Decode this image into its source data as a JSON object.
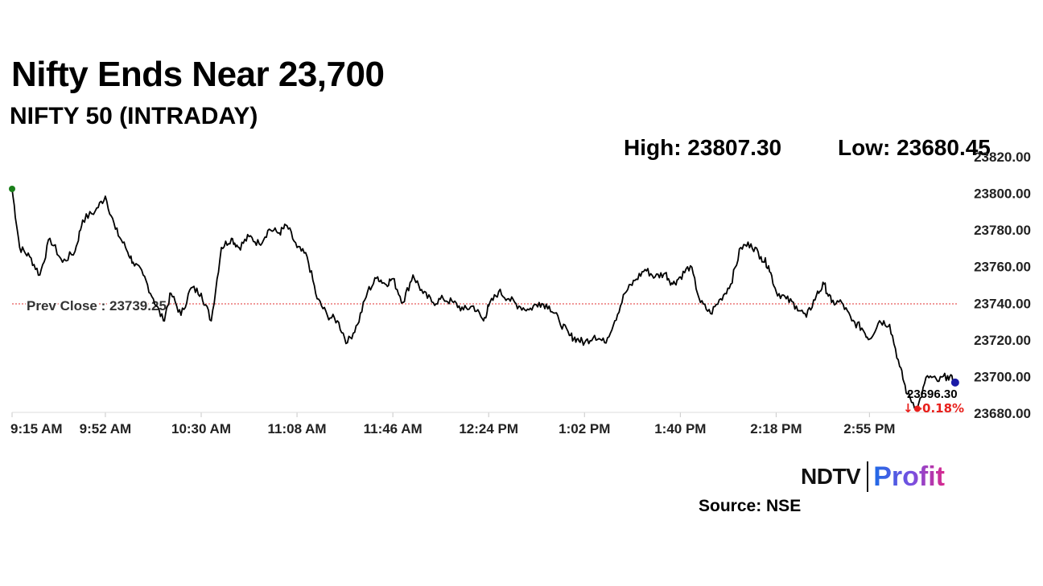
{
  "header": {
    "title": "Nifty Ends Near 23,700",
    "subtitle": "NIFTY 50 (INTRADAY)",
    "high_label": "High: 23807.30",
    "low_label": "Low: 23680.45"
  },
  "footer": {
    "logo_ndtv": "NDTV",
    "logo_profit": "Profit",
    "source": "Source: NSE"
  },
  "colors": {
    "line": "#000000",
    "prev_close": "#e03131",
    "start_marker": "#1a7f1a",
    "low_marker": "#e8201c",
    "end_marker": "#1a1aa6",
    "change_negative": "#e8201c"
  },
  "chart_data": {
    "type": "line",
    "title": "NIFTY 50 (INTRADAY)",
    "xlabel": "",
    "ylabel": "",
    "x_ticks": [
      "9:15 AM",
      "9:52 AM",
      "10:30 AM",
      "11:08 AM",
      "11:46 AM",
      "12:24 PM",
      "1:02 PM",
      "1:40 PM",
      "2:18 PM",
      "2:55 PM"
    ],
    "y_ticks": [
      "23820.00",
      "23800.00",
      "23780.00",
      "23760.00",
      "23740.00",
      "23720.00",
      "23700.00",
      "23680.00"
    ],
    "ylim": [
      23680,
      23820
    ],
    "grid": false,
    "prev_close": 23739.25,
    "prev_close_label": "Prev Close : 23739.25",
    "last_value_label": "23696.30",
    "change_label": "↓ -0.18%",
    "series": [
      {
        "x": [
          "9:15 AM",
          "9:18 AM",
          "9:22 AM",
          "9:26 AM",
          "9:30 AM",
          "9:35 AM",
          "9:40 AM",
          "9:43 AM",
          "9:48 AM",
          "9:52 AM",
          "9:56 AM",
          "10:00 AM",
          "10:03 AM",
          "10:07 AM",
          "10:11 AM",
          "10:15 AM",
          "10:18 AM",
          "10:22 AM",
          "10:26 AM",
          "10:30 AM",
          "10:34 AM",
          "10:38 AM",
          "10:42 AM",
          "10:45 AM",
          "10:49 AM",
          "10:53 AM",
          "10:57 AM",
          "11:01 AM",
          "11:04 AM",
          "11:08 AM",
          "11:12 AM",
          "11:16 AM",
          "11:20 AM",
          "11:24 AM",
          "11:28 AM",
          "11:32 AM",
          "11:36 AM",
          "11:40 AM",
          "11:43 AM",
          "11:46 AM",
          "11:50 AM",
          "11:54 AM",
          "11:58 AM",
          "12:02 PM",
          "12:06 PM",
          "12:10 PM",
          "12:14 PM",
          "12:18 PM",
          "12:22 PM",
          "12:24 PM",
          "12:28 PM",
          "12:32 PM",
          "12:36 PM",
          "12:40 PM",
          "12:44 PM",
          "12:48 PM",
          "12:52 PM",
          "12:56 PM",
          "12:59 PM",
          "1:02 PM",
          "1:06 PM",
          "1:10 PM",
          "1:14 PM",
          "1:18 PM",
          "1:22 PM",
          "1:26 PM",
          "1:30 PM",
          "1:34 PM",
          "1:37 PM",
          "1:40 PM",
          "1:44 PM",
          "1:48 PM",
          "1:52 PM",
          "1:56 PM",
          "2:00 PM",
          "2:04 PM",
          "2:08 PM",
          "2:12 PM",
          "2:15 PM",
          "2:18 PM",
          "2:22 PM",
          "2:26 PM",
          "2:30 PM",
          "2:34 PM",
          "2:37 PM",
          "2:40 PM",
          "2:44 PM",
          "2:48 PM",
          "2:52 PM",
          "2:55 PM",
          "2:59 PM",
          "3:03 PM",
          "3:07 PM",
          "3:10 PM",
          "3:14 PM",
          "3:18 PM",
          "3:22 PM",
          "3:26 PM",
          "3:29 PM"
        ],
        "values": [
          23802,
          23770,
          23765,
          23755,
          23775,
          23762,
          23768,
          23785,
          23790,
          23798,
          23780,
          23770,
          23762,
          23755,
          23742,
          23730,
          23745,
          23733,
          23748,
          23745,
          23730,
          23770,
          23775,
          23770,
          23776,
          23772,
          23780,
          23778,
          23782,
          23770,
          23765,
          23742,
          23733,
          23730,
          23718,
          23728,
          23746,
          23754,
          23750,
          23753,
          23740,
          23755,
          23745,
          23740,
          23742,
          23740,
          23736,
          23738,
          23730,
          23738,
          23746,
          23742,
          23738,
          23736,
          23740,
          23738,
          23730,
          23722,
          23720,
          23718,
          23722,
          23718,
          23730,
          23745,
          23752,
          23758,
          23754,
          23756,
          23750,
          23754,
          23760,
          23740,
          23734,
          23742,
          23750,
          23770,
          23772,
          23765,
          23760,
          23746,
          23742,
          23738,
          23732,
          23744,
          23750,
          23740,
          23740,
          23730,
          23726,
          23720,
          23730,
          23728,
          23705,
          23690,
          23682,
          23700,
          23697,
          23700,
          23696.3
        ]
      }
    ]
  }
}
